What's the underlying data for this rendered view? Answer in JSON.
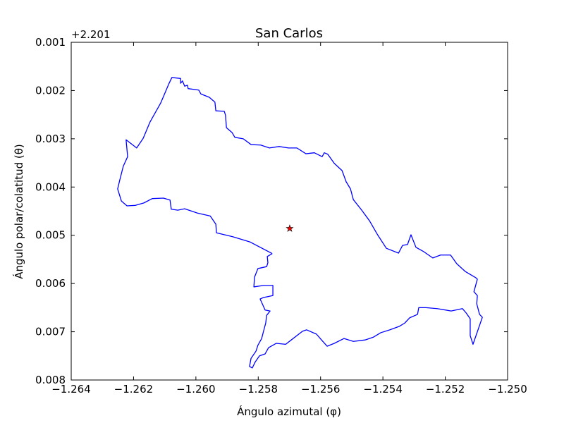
{
  "chart_data": {
    "type": "line",
    "title": "San Carlos",
    "xlabel": "Ángulo azimutal (φ)",
    "ylabel": "Ángulo polar/colatitud (θ)",
    "y_offset_text": "+2.201",
    "xlim": [
      -1.264,
      -1.25
    ],
    "ylim": [
      0.008,
      0.001
    ],
    "xticks": [
      {
        "value": -1.264,
        "label": "−1.264"
      },
      {
        "value": -1.262,
        "label": "−1.262"
      },
      {
        "value": -1.26,
        "label": "−1.260"
      },
      {
        "value": -1.258,
        "label": "−1.258"
      },
      {
        "value": -1.256,
        "label": "−1.256"
      },
      {
        "value": -1.254,
        "label": "−1.254"
      },
      {
        "value": -1.252,
        "label": "−1.252"
      },
      {
        "value": -1.25,
        "label": "−1.250"
      }
    ],
    "yticks": [
      0.001,
      0.002,
      0.003,
      0.004,
      0.005,
      0.006,
      0.007,
      0.008
    ],
    "series": [
      {
        "color": "#0000ff",
        "marker": "none",
        "x": [
          -1.25755,
          -1.25826,
          -1.25882,
          -1.25934,
          -1.25936,
          -1.25954,
          -1.25995,
          -1.26036,
          -1.26058,
          -1.26079,
          -1.26083,
          -1.26104,
          -1.2614,
          -1.26167,
          -1.26194,
          -1.26221,
          -1.26239,
          -1.26251,
          -1.26244,
          -1.26233,
          -1.26219,
          -1.26224,
          -1.2619,
          -1.26169,
          -1.26147,
          -1.26113,
          -1.26086,
          -1.26077,
          -1.26049,
          -1.26049,
          -1.26043,
          -1.26036,
          -1.26027,
          -1.26025,
          -1.25991,
          -1.25984,
          -1.25957,
          -1.25939,
          -1.25936,
          -1.25909,
          -1.25905,
          -1.25902,
          -1.25884,
          -1.25875,
          -1.25848,
          -1.25823,
          -1.25792,
          -1.25764,
          -1.25733,
          -1.25703,
          -1.25676,
          -1.25647,
          -1.2562,
          -1.25595,
          -1.25588,
          -1.25577,
          -1.25556,
          -1.25531,
          -1.25518,
          -1.25504,
          -1.25495,
          -1.25468,
          -1.25443,
          -1.25418,
          -1.25389,
          -1.2535,
          -1.25337,
          -1.25321,
          -1.2531,
          -1.25294,
          -1.25269,
          -1.2524,
          -1.25215,
          -1.25183,
          -1.25163,
          -1.25136,
          -1.25102,
          -1.25097,
          -1.25108,
          -1.25097,
          -1.25099,
          -1.2509,
          -1.25081,
          -1.25111,
          -1.2512,
          -1.2512,
          -1.25133,
          -1.25145,
          -1.25181,
          -1.25226,
          -1.25262,
          -1.25285,
          -1.25289,
          -1.25314,
          -1.2533,
          -1.25348,
          -1.25378,
          -1.25407,
          -1.2543,
          -1.25457,
          -1.25495,
          -1.25525,
          -1.25556,
          -1.25579,
          -1.25597,
          -1.25613,
          -1.25645,
          -1.25658,
          -1.25694,
          -1.25712,
          -1.25742,
          -1.25767,
          -1.25778,
          -1.25796,
          -1.2581,
          -1.25819,
          -1.25828,
          -1.25823,
          -1.25807,
          -1.25801,
          -1.25789,
          -1.25783,
          -1.25776,
          -1.25773,
          -1.25762,
          -1.25778,
          -1.25794,
          -1.25783,
          -1.25753,
          -1.25753,
          -1.25783,
          -1.25814,
          -1.25812,
          -1.25801,
          -1.25773,
          -1.25769,
          -1.25771,
          -1.25755
        ],
        "values": [
          0.00538,
          0.00514,
          0.00503,
          0.00495,
          0.00477,
          0.0046,
          0.00454,
          0.00445,
          0.00448,
          0.00446,
          0.00427,
          0.00423,
          0.00424,
          0.00433,
          0.00438,
          0.00439,
          0.00429,
          0.00404,
          0.00385,
          0.00357,
          0.00337,
          0.00302,
          0.00319,
          0.00299,
          0.00265,
          0.00226,
          0.00185,
          0.00173,
          0.00175,
          0.00185,
          0.0018,
          0.00191,
          0.00189,
          0.00196,
          0.00199,
          0.00207,
          0.00214,
          0.00224,
          0.00242,
          0.00243,
          0.00251,
          0.00277,
          0.00287,
          0.00297,
          0.003,
          0.00312,
          0.00313,
          0.00319,
          0.00316,
          0.00319,
          0.00319,
          0.00331,
          0.00329,
          0.00337,
          0.00329,
          0.00332,
          0.00351,
          0.00366,
          0.00389,
          0.00404,
          0.00426,
          0.00448,
          0.0047,
          0.00498,
          0.00527,
          0.00537,
          0.00521,
          0.00519,
          0.00499,
          0.00525,
          0.00534,
          0.00547,
          0.00541,
          0.00541,
          0.00559,
          0.00575,
          0.00588,
          0.00591,
          0.00617,
          0.00625,
          0.00642,
          0.00664,
          0.0067,
          0.00726,
          0.00708,
          0.00673,
          0.00661,
          0.00652,
          0.00657,
          0.00652,
          0.0065,
          0.0065,
          0.00664,
          0.00671,
          0.00682,
          0.00689,
          0.00696,
          0.00702,
          0.00711,
          0.00717,
          0.0072,
          0.00714,
          0.00724,
          0.0073,
          0.00717,
          0.00705,
          0.00696,
          0.00699,
          0.00717,
          0.00726,
          0.00724,
          0.00733,
          0.00746,
          0.0075,
          0.00763,
          0.00775,
          0.00772,
          0.00755,
          0.0074,
          0.00728,
          0.00714,
          0.00699,
          0.00682,
          0.00666,
          0.00657,
          0.00655,
          0.00632,
          0.00629,
          0.00625,
          0.00604,
          0.00604,
          0.00607,
          0.00587,
          0.00569,
          0.00565,
          0.00557,
          0.00544,
          0.00538
        ]
      },
      {
        "color": "#ff0000",
        "marker": "star",
        "x": [
          -1.25699
        ],
        "values": [
          0.00486
        ]
      }
    ]
  }
}
